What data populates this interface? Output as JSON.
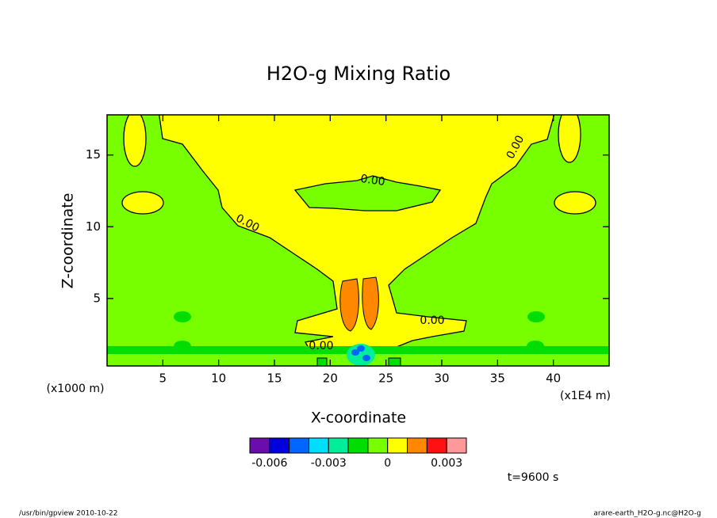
{
  "chart_data": {
    "type": "contour",
    "title": "H2O-g Mixing Ratio",
    "x_label": "X-coordinate",
    "y_label": "Z-coordinate",
    "x_unit": "(x1E4 m)",
    "y_unit": "(x1000 m)",
    "xlim": [
      0,
      45
    ],
    "ylim": [
      0.3,
      17.8
    ],
    "xticks": [
      5,
      10,
      15,
      20,
      25,
      30,
      35,
      40
    ],
    "yticks": [
      5,
      10,
      15
    ],
    "contour_labels": [
      {
        "value": 0,
        "label": "0.00"
      },
      {
        "value": 0,
        "label": "0.00"
      },
      {
        "value": 0,
        "label": "0.00"
      },
      {
        "value": 0,
        "label": "0.00"
      },
      {
        "value": 0,
        "label": "0.00"
      }
    ],
    "colorbar": {
      "colors": [
        "#6a0dad",
        "#0000dd",
        "#0066ff",
        "#00ddff",
        "#00ee99",
        "#00dd00",
        "#77ff00",
        "#ffff00",
        "#ff8800",
        "#ff1111",
        "#ff9999"
      ],
      "lim": [
        -0.007,
        0.004
      ],
      "ticks": [
        -0.006,
        -0.003,
        0,
        0.003
      ]
    },
    "time_label": "t=9600 s"
  },
  "footer": {
    "left": "/usr/bin/gpview  2010-10-22",
    "right": "arare-earth_H2O-g.nc@H2O-g"
  }
}
